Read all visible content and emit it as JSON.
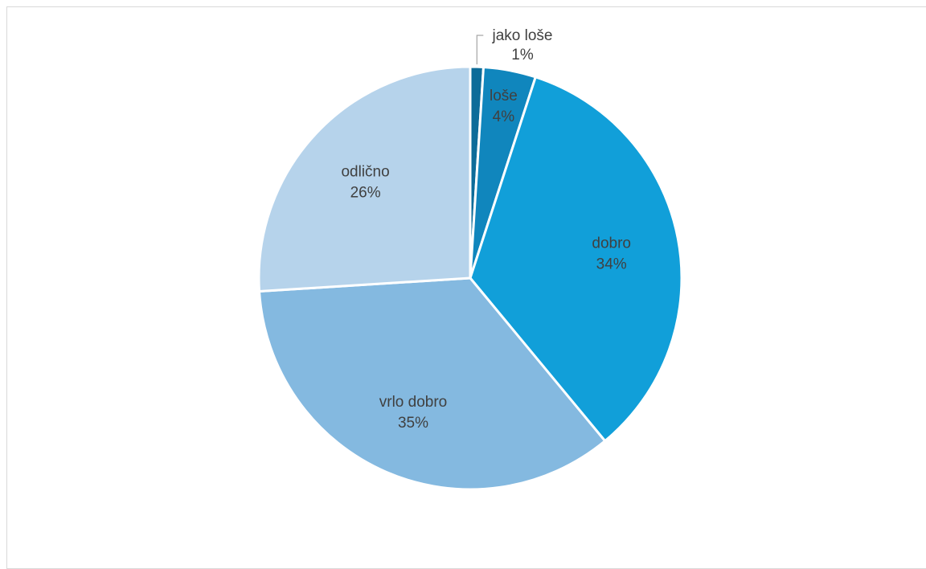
{
  "chart_data": {
    "type": "pie",
    "title": "",
    "categories": [
      "jako loše",
      "loše",
      "dobro",
      "vrlo dobro",
      "odlično"
    ],
    "values": [
      1,
      4,
      34,
      35,
      26
    ],
    "value_labels": [
      "1%",
      "4%",
      "34%",
      "35%",
      "26%"
    ],
    "colors": [
      "#0d6c99",
      "#1086bd",
      "#119fd9",
      "#84b9e0",
      "#b6d3eb"
    ],
    "start_angle_deg": 0,
    "direction": "clockwise"
  }
}
